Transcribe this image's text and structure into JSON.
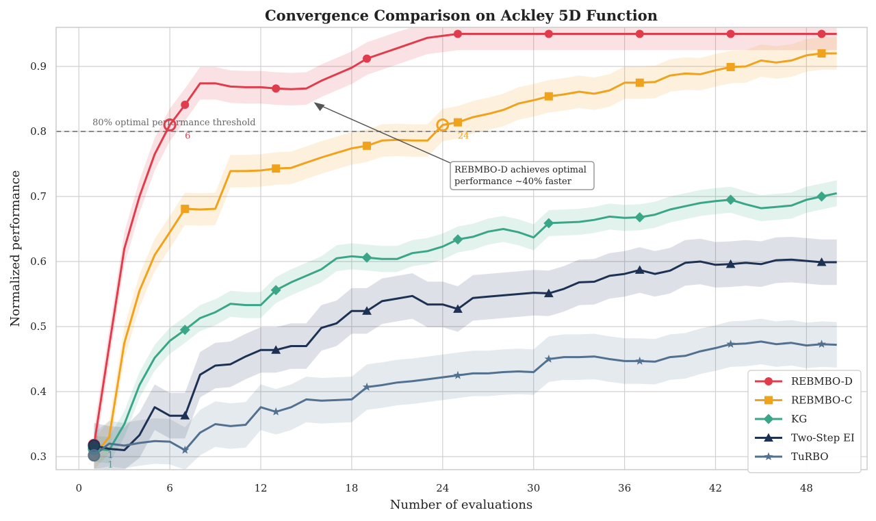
{
  "chart_data": {
    "type": "line",
    "title": "Convergence Comparison on Ackley 5D Function",
    "xlabel": "Number of evaluations",
    "ylabel": "Normalized performance",
    "xlim": [
      -1.5,
      52
    ],
    "ylim": [
      0.28,
      0.96
    ],
    "xticks": [
      0,
      6,
      12,
      18,
      24,
      30,
      36,
      42,
      48
    ],
    "yticks": [
      0.3,
      0.4,
      0.5,
      0.6,
      0.7,
      0.8,
      0.9
    ],
    "grid": true,
    "legend_position": "bottom-right",
    "x": [
      1,
      2,
      3,
      4,
      5,
      6,
      7,
      8,
      9,
      10,
      11,
      12,
      13,
      14,
      15,
      16,
      17,
      18,
      19,
      20,
      21,
      22,
      23,
      24,
      25,
      26,
      27,
      28,
      29,
      30,
      31,
      32,
      33,
      34,
      35,
      36,
      37,
      38,
      39,
      40,
      41,
      42,
      43,
      44,
      45,
      46,
      47,
      48,
      49,
      50
    ],
    "series": [
      {
        "name": "REBMBO-D",
        "color": "#e03c4b",
        "marker": "circle",
        "marker_every": 6,
        "values": [
          0.318,
          0.47,
          0.62,
          0.7,
          0.765,
          0.81,
          0.841,
          0.874,
          0.874,
          0.869,
          0.868,
          0.868,
          0.866,
          0.865,
          0.866,
          0.878,
          0.888,
          0.898,
          0.912,
          0.92,
          0.928,
          0.936,
          0.944,
          0.947,
          0.95,
          0.95,
          0.95,
          0.95,
          0.95,
          0.95,
          0.95,
          0.95,
          0.95,
          0.95,
          0.95,
          0.95,
          0.95,
          0.95,
          0.95,
          0.95,
          0.95,
          0.95,
          0.95,
          0.95,
          0.95,
          0.95,
          0.95,
          0.95,
          0.95,
          0.95
        ],
        "band": 0.025
      },
      {
        "name": "REBMBO-C",
        "color": "#f0a21c",
        "marker": "square",
        "marker_every": 6,
        "values": [
          0.302,
          0.33,
          0.475,
          0.555,
          0.61,
          0.645,
          0.681,
          0.68,
          0.681,
          0.739,
          0.739,
          0.74,
          0.743,
          0.744,
          0.752,
          0.76,
          0.767,
          0.774,
          0.778,
          0.786,
          0.787,
          0.786,
          0.786,
          0.81,
          0.814,
          0.822,
          0.827,
          0.833,
          0.843,
          0.848,
          0.854,
          0.857,
          0.861,
          0.858,
          0.863,
          0.875,
          0.875,
          0.876,
          0.886,
          0.889,
          0.888,
          0.894,
          0.899,
          0.9,
          0.909,
          0.906,
          0.909,
          0.917,
          0.92,
          0.92
        ],
        "band": 0.025
      },
      {
        "name": "KG",
        "color": "#3aa687",
        "marker": "diamond",
        "marker_every": 6,
        "values": [
          0.312,
          0.31,
          0.35,
          0.41,
          0.452,
          0.478,
          0.495,
          0.513,
          0.522,
          0.535,
          0.533,
          0.533,
          0.556,
          0.568,
          0.578,
          0.588,
          0.605,
          0.608,
          0.606,
          0.604,
          0.604,
          0.613,
          0.616,
          0.623,
          0.634,
          0.638,
          0.646,
          0.65,
          0.645,
          0.637,
          0.659,
          0.66,
          0.661,
          0.664,
          0.669,
          0.667,
          0.668,
          0.672,
          0.68,
          0.685,
          0.69,
          0.693,
          0.695,
          0.688,
          0.682,
          0.684,
          0.686,
          0.695,
          0.7,
          0.705
        ],
        "band": 0.02
      },
      {
        "name": "Two-Step EI",
        "color": "#1c3154",
        "marker": "triangle",
        "marker_every": 6,
        "values": [
          0.317,
          0.312,
          0.31,
          0.333,
          0.376,
          0.363,
          0.363,
          0.426,
          0.44,
          0.442,
          0.454,
          0.464,
          0.464,
          0.47,
          0.47,
          0.498,
          0.505,
          0.524,
          0.524,
          0.539,
          0.543,
          0.547,
          0.534,
          0.534,
          0.527,
          0.544,
          0.546,
          0.548,
          0.55,
          0.552,
          0.551,
          0.558,
          0.568,
          0.569,
          0.578,
          0.581,
          0.587,
          0.581,
          0.586,
          0.598,
          0.6,
          0.595,
          0.596,
          0.598,
          0.596,
          0.602,
          0.603,
          0.601,
          0.599,
          0.599
        ],
        "band": 0.035
      },
      {
        "name": "TuRBO",
        "color": "#52708f",
        "marker": "star",
        "marker_every": 6,
        "values": [
          0.302,
          0.32,
          0.317,
          0.321,
          0.324,
          0.323,
          0.31,
          0.337,
          0.35,
          0.347,
          0.349,
          0.376,
          0.369,
          0.376,
          0.388,
          0.386,
          0.387,
          0.388,
          0.407,
          0.41,
          0.414,
          0.416,
          0.419,
          0.422,
          0.425,
          0.428,
          0.428,
          0.43,
          0.431,
          0.43,
          0.45,
          0.453,
          0.453,
          0.454,
          0.45,
          0.447,
          0.447,
          0.446,
          0.453,
          0.455,
          0.462,
          0.467,
          0.473,
          0.474,
          0.477,
          0.473,
          0.475,
          0.471,
          0.473,
          0.472
        ],
        "band": 0.035
      }
    ],
    "threshold": {
      "value": 0.8,
      "label": "80% optimal performance threshold"
    },
    "crossings": [
      {
        "series": "REBMBO-D",
        "x": 6,
        "y": 0.81,
        "label": "6",
        "color": "#e03c4b"
      },
      {
        "series": "REBMBO-C",
        "x": 24,
        "y": 0.81,
        "label": "24",
        "color": "#f0a21c"
      }
    ],
    "start_points": [
      {
        "y": 0.318,
        "color": "#e03c4b",
        "label": "1"
      },
      {
        "y": 0.302,
        "color": "#f0a21c",
        "label": "1"
      },
      {
        "y": 0.312,
        "color": "#3aa687",
        "label": "1"
      },
      {
        "y": 0.317,
        "color": "#1c3154",
        "label": "1"
      },
      {
        "y": 0.302,
        "color": "#52708f",
        "label": "1"
      }
    ],
    "annotation": {
      "lines": [
        "REBMBO-D achieves optimal",
        "performance ~40% faster"
      ],
      "arrow_target": {
        "x": 15.5,
        "y": 0.845
      }
    }
  }
}
